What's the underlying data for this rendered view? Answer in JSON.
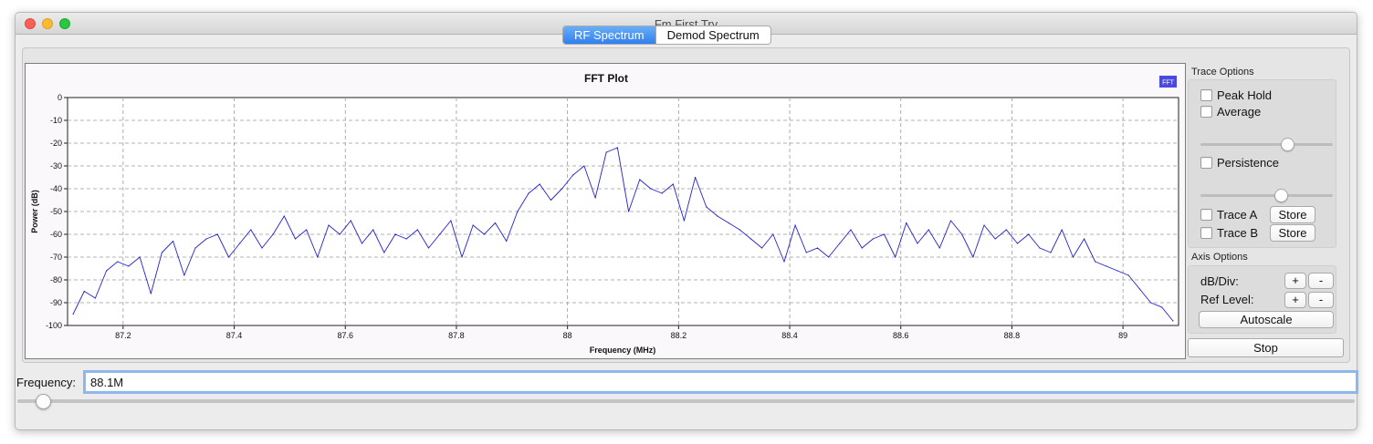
{
  "window": {
    "title": "Fm First Try"
  },
  "tabs": [
    {
      "label": "RF Spectrum",
      "active": true
    },
    {
      "label": "Demod Spectrum",
      "active": false
    }
  ],
  "trace_options": {
    "title": "Trace Options",
    "peak_hold": {
      "label": "Peak Hold",
      "checked": false
    },
    "average": {
      "label": "Average",
      "checked": false
    },
    "average_level": 0.68,
    "persistence": {
      "label": "Persistence",
      "checked": false
    },
    "persistence_level": 0.62,
    "trace_a": {
      "label": "Trace A",
      "checked": false,
      "button": "Store"
    },
    "trace_b": {
      "label": "Trace B",
      "checked": false,
      "button": "Store"
    }
  },
  "axis_options": {
    "title": "Axis Options",
    "db_div_label": "dB/Div:",
    "ref_level_label": "Ref Level:",
    "plus": "+",
    "minus": "-",
    "autoscale": "Autoscale"
  },
  "stop_button": "Stop",
  "frequency": {
    "label": "Frequency:",
    "value": "88.1M",
    "slider_level": 0.01
  },
  "colors": {
    "trace": "#2222cc",
    "legend_swatch": "#4a4adf",
    "accent": "#3b8cf3"
  },
  "chart_data": {
    "type": "line",
    "title": "FFT Plot",
    "xlabel": "Frequency (MHz)",
    "ylabel": "Power (dB)",
    "xlim": [
      87.1,
      89.1
    ],
    "ylim": [
      -100,
      0
    ],
    "xticks": [
      87.2,
      87.4,
      87.6,
      87.8,
      88,
      88.2,
      88.4,
      88.6,
      88.8,
      89
    ],
    "xtick_labels": [
      "87.2",
      "87.4",
      "87.6",
      "87.8",
      "88",
      "88.2",
      "88.4",
      "88.6",
      "88.8",
      "89"
    ],
    "yticks": [
      0,
      -10,
      -20,
      -30,
      -40,
      -50,
      -60,
      -70,
      -80,
      -90,
      -100
    ],
    "ytick_labels": [
      "0",
      "-10",
      "-20",
      "-30",
      "-40",
      "-50",
      "-60",
      "-70",
      "-80",
      "-90",
      "-100"
    ],
    "grid": true,
    "legend": {
      "placement": "top-right",
      "entries": [
        "FFT"
      ]
    },
    "series": [
      {
        "name": "FFT",
        "x": [
          87.11,
          87.13,
          87.15,
          87.17,
          87.19,
          87.21,
          87.23,
          87.25,
          87.27,
          87.29,
          87.31,
          87.33,
          87.35,
          87.37,
          87.39,
          87.41,
          87.43,
          87.45,
          87.47,
          87.49,
          87.51,
          87.53,
          87.55,
          87.57,
          87.59,
          87.61,
          87.63,
          87.65,
          87.67,
          87.69,
          87.71,
          87.73,
          87.75,
          87.77,
          87.79,
          87.81,
          87.83,
          87.85,
          87.87,
          87.89,
          87.91,
          87.93,
          87.95,
          87.97,
          87.99,
          88.01,
          88.03,
          88.05,
          88.07,
          88.09,
          88.11,
          88.13,
          88.15,
          88.17,
          88.19,
          88.21,
          88.23,
          88.25,
          88.27,
          88.29,
          88.31,
          88.33,
          88.35,
          88.37,
          88.39,
          88.41,
          88.43,
          88.45,
          88.47,
          88.49,
          88.51,
          88.53,
          88.55,
          88.57,
          88.59,
          88.61,
          88.63,
          88.65,
          88.67,
          88.69,
          88.71,
          88.73,
          88.75,
          88.77,
          88.79,
          88.81,
          88.83,
          88.85,
          88.87,
          88.89,
          88.91,
          88.93,
          88.95,
          88.97,
          88.99,
          89.01,
          89.03,
          89.05,
          89.07,
          89.09
        ],
        "y": [
          -95,
          -85,
          -88,
          -76,
          -72,
          -74,
          -70,
          -86,
          -68,
          -63,
          -78,
          -66,
          -62,
          -60,
          -70,
          -64,
          -58,
          -66,
          -60,
          -52,
          -62,
          -58,
          -70,
          -56,
          -60,
          -54,
          -64,
          -58,
          -68,
          -60,
          -62,
          -58,
          -66,
          -60,
          -54,
          -70,
          -56,
          -60,
          -55,
          -63,
          -50,
          -42,
          -38,
          -45,
          -40,
          -34,
          -30,
          -44,
          -24,
          -22,
          -50,
          -36,
          -40,
          -42,
          -38,
          -54,
          -35,
          -48,
          -52,
          -55,
          -58,
          -62,
          -66,
          -60,
          -72,
          -56,
          -68,
          -66,
          -70,
          -64,
          -58,
          -66,
          -62,
          -60,
          -70,
          -55,
          -64,
          -58,
          -66,
          -54,
          -60,
          -70,
          -56,
          -62,
          -58,
          -64,
          -60,
          -66,
          -68,
          -58,
          -70,
          -62,
          -72,
          -74,
          -76,
          -78,
          -84,
          -90,
          -92,
          -98
        ]
      }
    ]
  }
}
